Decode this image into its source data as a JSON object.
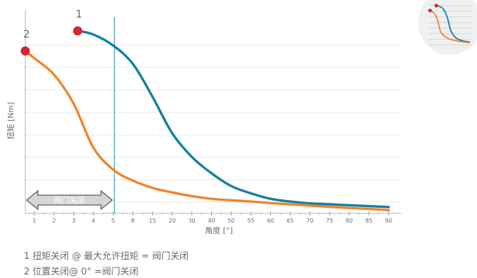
{
  "chart_data": {
    "type": "line",
    "xlabel": "角度 [°]",
    "ylabel": "扭矩 [Nm]",
    "x_ticks": [
      "1",
      "2",
      "3",
      "4",
      "5",
      "8",
      "15",
      "20",
      "30",
      "40",
      "50",
      "55",
      "60",
      "65",
      "70",
      "75",
      "80",
      "85",
      "90"
    ],
    "grid": "horizontal",
    "closed_region": {
      "label": "阀门关闭",
      "from_tick": "1",
      "to_tick": "5"
    },
    "marker_line_tick": "5",
    "series": [
      {
        "name": "1",
        "color": "#157f9e",
        "start_tick_pos": 3.2,
        "start_torque": 1.0,
        "points": [
          [
            3.2,
            1.0
          ],
          [
            4,
            0.98
          ],
          [
            5,
            0.92
          ],
          [
            6,
            0.82
          ],
          [
            7,
            0.64
          ],
          [
            8,
            0.44
          ],
          [
            9,
            0.31
          ],
          [
            10,
            0.22
          ],
          [
            11,
            0.15
          ],
          [
            12,
            0.11
          ],
          [
            13,
            0.08
          ],
          [
            14,
            0.065
          ],
          [
            15,
            0.055
          ],
          [
            16,
            0.05
          ],
          [
            17,
            0.045
          ],
          [
            18,
            0.04
          ],
          [
            19,
            0.035
          ]
        ]
      },
      {
        "name": "2",
        "color": "#f0842b",
        "start_tick_pos": 0,
        "start_torque": 0.89,
        "points": [
          [
            0,
            0.89
          ],
          [
            1,
            0.85
          ],
          [
            2,
            0.76
          ],
          [
            3,
            0.6
          ],
          [
            4,
            0.36
          ],
          [
            5,
            0.24
          ],
          [
            6,
            0.18
          ],
          [
            7,
            0.14
          ],
          [
            8,
            0.115
          ],
          [
            9,
            0.095
          ],
          [
            10,
            0.08
          ],
          [
            11,
            0.072
          ],
          [
            12,
            0.065
          ],
          [
            13,
            0.057
          ],
          [
            14,
            0.05
          ],
          [
            15,
            0.043
          ],
          [
            16,
            0.036
          ],
          [
            17,
            0.03
          ],
          [
            18,
            0.025
          ],
          [
            19,
            0.018
          ]
        ]
      }
    ]
  },
  "legend": {
    "item1": "1 扭矩关闭 @ 最大允许扭矩 = 阀门关闭",
    "item2": "2 位置关闭@ 0° =阀门关闭"
  }
}
